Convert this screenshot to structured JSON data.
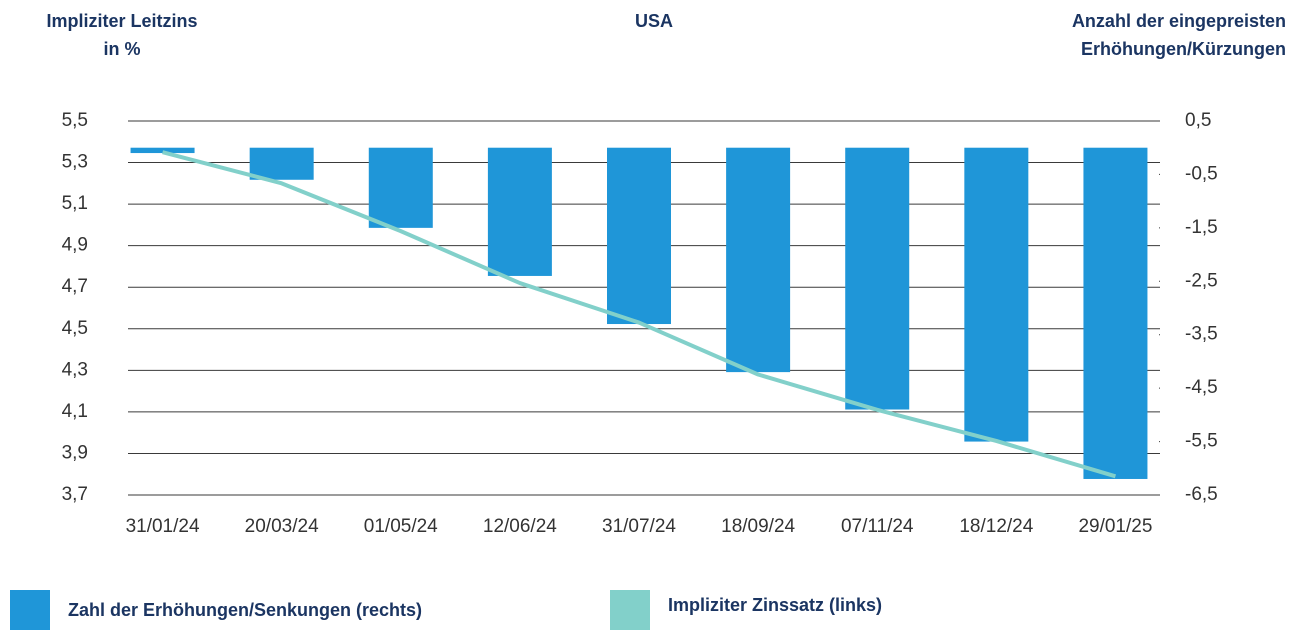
{
  "chart_data": {
    "type": "bar_line",
    "title": "USA",
    "ylabel": [
      "Impliziter Leitzins",
      "in %"
    ],
    "y2label": [
      "Anzahl der eingepreisten",
      "Erhöhungen/Kürzungen"
    ],
    "categories": [
      "31/01/24",
      "20/03/24",
      "01/05/24",
      "12/06/24",
      "31/07/24",
      "18/09/24",
      "07/11/24",
      "18/12/24",
      "29/01/25"
    ],
    "series": [
      {
        "name": "Zahl der Erhöhungen/Senkungen (rechts)",
        "type": "bar",
        "axis": "y2",
        "color": "#1f96d8",
        "values": [
          -0.1,
          -0.6,
          -1.5,
          -2.4,
          -3.3,
          -4.2,
          -4.9,
          -5.5,
          -6.2
        ]
      },
      {
        "name": "Impliziter Zinssatz (links)",
        "type": "line",
        "color": "#82d0ca",
        "values": [
          5.35,
          5.2,
          4.97,
          4.72,
          4.53,
          4.28,
          4.11,
          3.96,
          3.79
        ]
      }
    ],
    "ylim": [
      3.7,
      5.5
    ],
    "yticks": [
      {
        "value": 3.7,
        "label": "3,7"
      },
      {
        "value": 3.9,
        "label": "3,9"
      },
      {
        "value": 4.1,
        "label": "4,1"
      },
      {
        "value": 4.3,
        "label": "4,3"
      },
      {
        "value": 4.5,
        "label": "4,5"
      },
      {
        "value": 4.7,
        "label": "4,7"
      },
      {
        "value": 4.9,
        "label": "4,9"
      },
      {
        "value": 5.1,
        "label": "5,1"
      },
      {
        "value": 5.3,
        "label": "5,3"
      },
      {
        "value": 5.5,
        "label": "5,5"
      }
    ],
    "y2lim": [
      -6.5,
      0.5
    ],
    "y2ticks": [
      {
        "value": -6.5,
        "label": "-6,5"
      },
      {
        "value": -5.5,
        "label": "-5,5"
      },
      {
        "value": -4.5,
        "label": "-4,5"
      },
      {
        "value": -3.5,
        "label": "-3,5"
      },
      {
        "value": -2.5,
        "label": "-2,5"
      },
      {
        "value": -1.5,
        "label": "-1,5"
      },
      {
        "value": -0.5,
        "label": "-0,5"
      },
      {
        "value": 0.5,
        "label": "0,5"
      }
    ],
    "grid": true
  }
}
